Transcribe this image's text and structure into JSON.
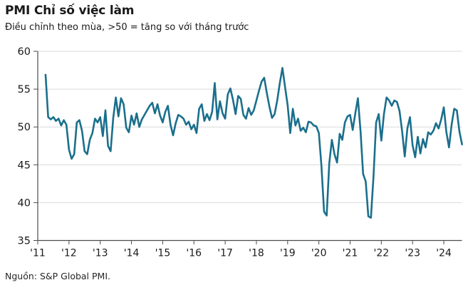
{
  "header": {
    "title": "PMI Chỉ số việc làm",
    "subtitle": "Điều chỉnh theo mùa, >50 = tăng so với tháng trước"
  },
  "footer": {
    "source": "Nguồn: S&P Global PMI."
  },
  "chart_data": {
    "type": "line",
    "title": "PMI Chỉ số việc làm",
    "subtitle": "Điều chỉnh theo mùa, >50 = tăng so với tháng trước",
    "source": "Nguồn: S&P Global PMI.",
    "frequency": "monthly",
    "start_year": 2011,
    "start_month": 4,
    "end": "2024-08",
    "values": [
      56.9,
      51.3,
      51.0,
      51.3,
      50.8,
      51.1,
      50.2,
      50.9,
      50.3,
      47.0,
      45.8,
      46.4,
      50.6,
      50.9,
      49.5,
      46.8,
      46.4,
      48.3,
      49.2,
      51.1,
      50.6,
      51.3,
      48.8,
      52.2,
      47.5,
      46.8,
      51.2,
      53.9,
      51.4,
      53.8,
      53.0,
      49.9,
      49.3,
      51.5,
      50.3,
      51.8,
      50.0,
      51.0,
      51.6,
      52.2,
      52.8,
      53.2,
      51.8,
      53.0,
      51.5,
      50.6,
      52.0,
      52.8,
      50.3,
      48.9,
      50.5,
      51.6,
      51.4,
      51.1,
      50.3,
      50.7,
      49.7,
      50.3,
      49.2,
      52.4,
      53.0,
      50.8,
      51.7,
      50.9,
      52.0,
      55.8,
      51.0,
      53.4,
      51.8,
      51.1,
      54.3,
      55.1,
      53.6,
      51.7,
      54.1,
      53.7,
      51.6,
      51.1,
      52.5,
      51.6,
      52.2,
      53.5,
      54.8,
      56.0,
      56.5,
      54.5,
      52.7,
      51.2,
      51.7,
      53.5,
      55.8,
      57.8,
      55.3,
      52.9,
      49.2,
      52.4,
      50.2,
      51.1,
      49.5,
      49.9,
      49.3,
      50.7,
      50.6,
      50.2,
      50.1,
      49.2,
      44.8,
      38.8,
      38.3,
      45.2,
      48.3,
      46.4,
      45.3,
      49.1,
      48.3,
      50.6,
      51.4,
      51.6,
      49.6,
      51.8,
      53.8,
      49.5,
      43.8,
      42.8,
      38.2,
      38.0,
      43.5,
      50.6,
      51.7,
      48.2,
      51.7,
      53.9,
      53.5,
      52.8,
      53.5,
      53.3,
      52.1,
      49.4,
      46.1,
      49.8,
      51.3,
      47.6,
      46.0,
      48.7,
      46.5,
      48.4,
      47.3,
      49.3,
      49.0,
      49.5,
      50.5,
      49.8,
      51.0,
      52.6,
      49.3,
      47.3,
      50.3,
      52.4,
      52.2,
      49.4,
      47.7
    ],
    "ylim": [
      35,
      60
    ],
    "yticks": [
      60,
      55,
      50,
      45,
      40,
      35
    ],
    "xtick_labels": [
      "'11",
      "'12",
      "'13",
      "'14",
      "'15",
      "'16",
      "'17",
      "'18",
      "'19",
      "'20",
      "'21",
      "'22",
      "'23",
      "'24"
    ],
    "grid": "horizontal",
    "legend": "none",
    "line_color": "#1A6F8C",
    "axis_color": "#4D4D4D",
    "grid_color": "#D9D9D9",
    "text_color": "#1A1A1A"
  }
}
